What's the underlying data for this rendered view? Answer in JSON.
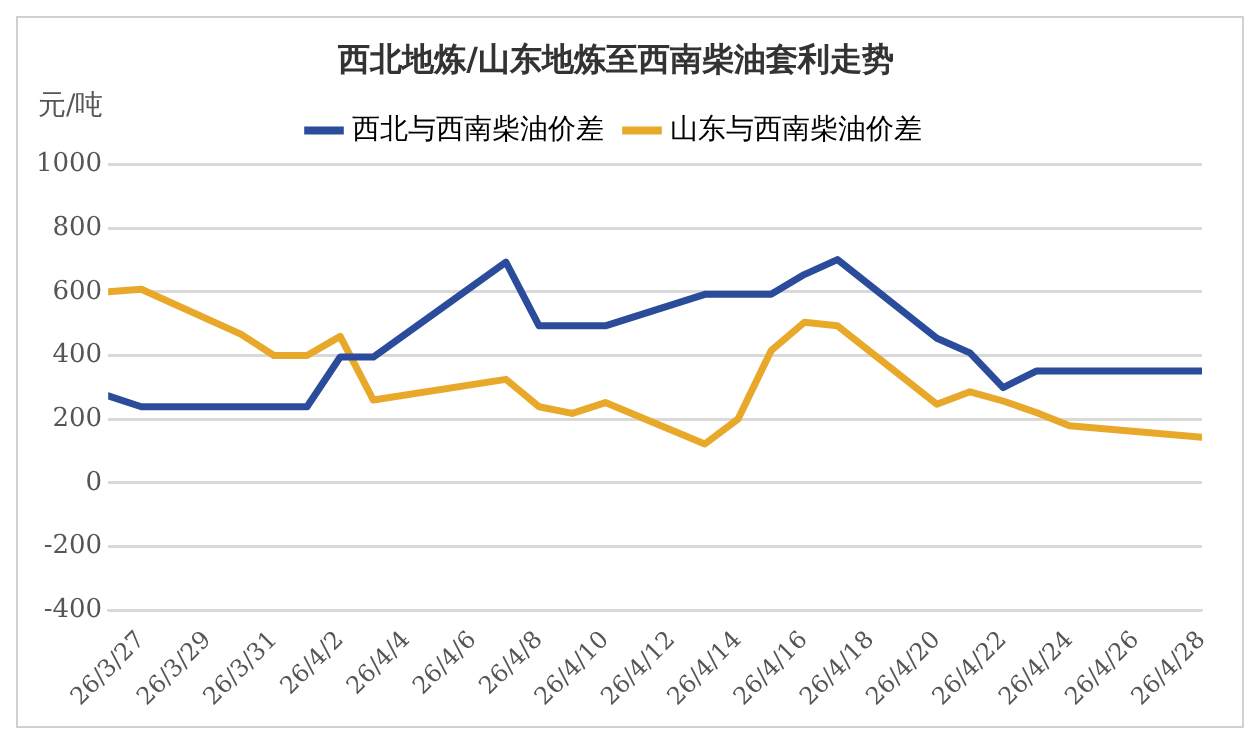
{
  "chart_data": {
    "type": "line",
    "title": "西北地炼/山东地炼至西南柴油套利走势",
    "ylabel": "元/吨",
    "series": [
      {
        "name": "西北与西南柴油价差",
        "color": "#2b4c9b",
        "x": [
          "--03-26",
          "--03-27",
          "--04-01",
          "--04-02",
          "--04-03",
          "--04-07",
          "--04-08",
          "--04-10",
          "--04-13",
          "--04-15",
          "--04-16",
          "--04-17",
          "--04-20",
          "--04-21",
          "--04-22",
          "--04-23",
          "--04-28"
        ],
        "values": [
          273,
          239,
          239,
          395,
          395,
          693,
          493,
          493,
          592,
          592,
          654,
          701,
          454,
          408,
          299,
          351,
          351
        ]
      },
      {
        "name": "山东与西南柴油价差",
        "color": "#e8a92b",
        "x": [
          "--03-26",
          "--03-27",
          "--03-30",
          "--03-31",
          "--04-01",
          "--04-02",
          "--04-03",
          "--04-07",
          "--04-08",
          "--04-09",
          "--04-10",
          "--04-13",
          "--04-14",
          "--04-15",
          "--04-16",
          "--04-17",
          "--04-20",
          "--04-21",
          "--04-22",
          "--04-23",
          "--04-24",
          "--04-28"
        ],
        "values": [
          600,
          608,
          467,
          400,
          400,
          460,
          260,
          325,
          239,
          218,
          252,
          122,
          200,
          415,
          504,
          493,
          247,
          286,
          257,
          221,
          179,
          143
        ]
      }
    ],
    "xlim": [
      "--03-26",
      "--04-28"
    ],
    "xticks": [
      {
        "value": "--03-27",
        "label": "26/3/27"
      },
      {
        "value": "--03-29",
        "label": "26/3/29"
      },
      {
        "value": "--03-31",
        "label": "26/3/31"
      },
      {
        "value": "--04-02",
        "label": "26/4/2"
      },
      {
        "value": "--04-04",
        "label": "26/4/4"
      },
      {
        "value": "--04-06",
        "label": "26/4/6"
      },
      {
        "value": "--04-08",
        "label": "26/4/8"
      },
      {
        "value": "--04-10",
        "label": "26/4/10"
      },
      {
        "value": "--04-12",
        "label": "26/4/12"
      },
      {
        "value": "--04-14",
        "label": "26/4/14"
      },
      {
        "value": "--04-16",
        "label": "26/4/16"
      },
      {
        "value": "--04-18",
        "label": "26/4/18"
      },
      {
        "value": "--04-20",
        "label": "26/4/20"
      },
      {
        "value": "--04-22",
        "label": "26/4/22"
      },
      {
        "value": "--04-24",
        "label": "26/4/24"
      },
      {
        "value": "--04-26",
        "label": "26/4/26"
      },
      {
        "value": "--04-28",
        "label": "26/4/28"
      }
    ],
    "ylim": [
      -400,
      1000
    ],
    "yticks": [
      -400,
      -200,
      0,
      200,
      400,
      600,
      800,
      1000
    ],
    "grid": "y",
    "legend": "top",
    "marker": "none",
    "line_style": "solid"
  }
}
